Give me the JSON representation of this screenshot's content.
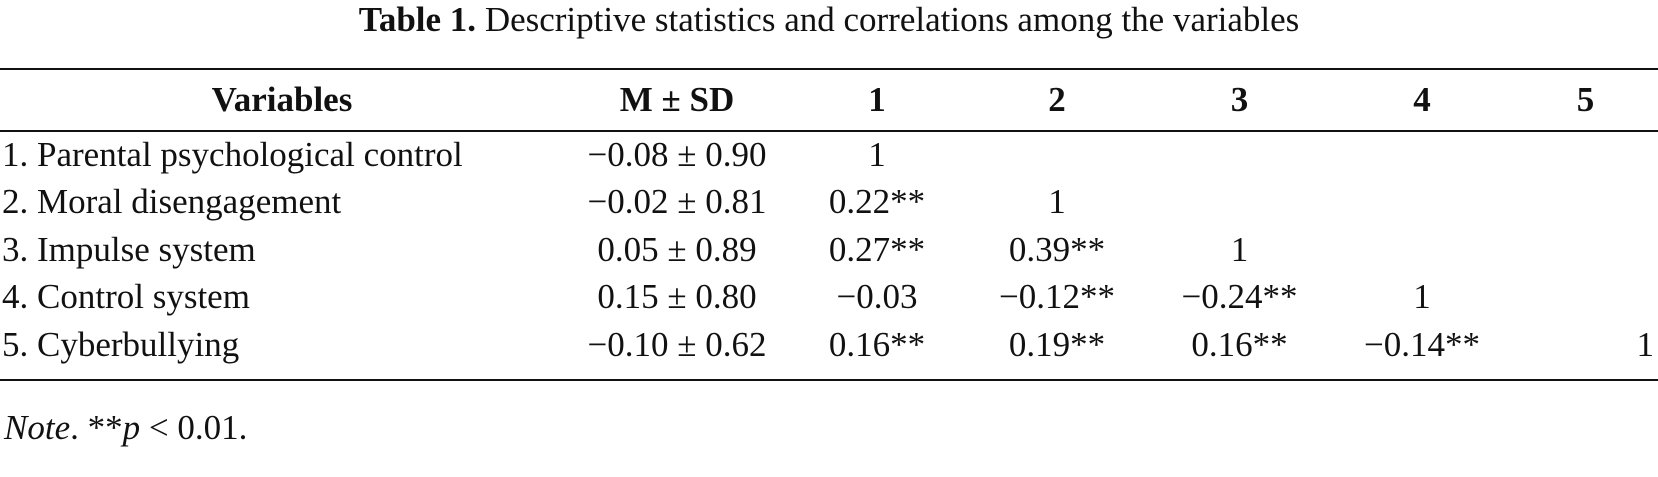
{
  "caption": {
    "label": "Table 1.",
    "text": "Descriptive statistics and correlations among the variables"
  },
  "table": {
    "headers": [
      "Variables",
      "M ± SD",
      "1",
      "2",
      "3",
      "4",
      "5"
    ],
    "rows": [
      {
        "variable": "1. Parental psychological control",
        "msd": "−0.08 ± 0.90",
        "c1": "1",
        "c2": "",
        "c3": "",
        "c4": "",
        "c5": ""
      },
      {
        "variable": "2. Moral disengagement",
        "msd": "−0.02 ± 0.81",
        "c1": "0.22**",
        "c2": "1",
        "c3": "",
        "c4": "",
        "c5": ""
      },
      {
        "variable": "3. Impulse system",
        "msd": "0.05 ± 0.89",
        "c1": "0.27**",
        "c2": "0.39**",
        "c3": "1",
        "c4": "",
        "c5": ""
      },
      {
        "variable": "4. Control system",
        "msd": "0.15 ± 0.80",
        "c1": "−0.03",
        "c2": "−0.12**",
        "c3": "−0.24**",
        "c4": "1",
        "c5": ""
      },
      {
        "variable": "5. Cyberbullying",
        "msd": "−0.10 ± 0.62",
        "c1": "0.16**",
        "c2": "0.19**",
        "c3": "0.16**",
        "c4": "−0.14**",
        "c5": "1"
      }
    ]
  },
  "note": {
    "label": "Note",
    "sep": ". ",
    "stars": "**",
    "p": "p",
    "rest": " < 0.01."
  }
}
